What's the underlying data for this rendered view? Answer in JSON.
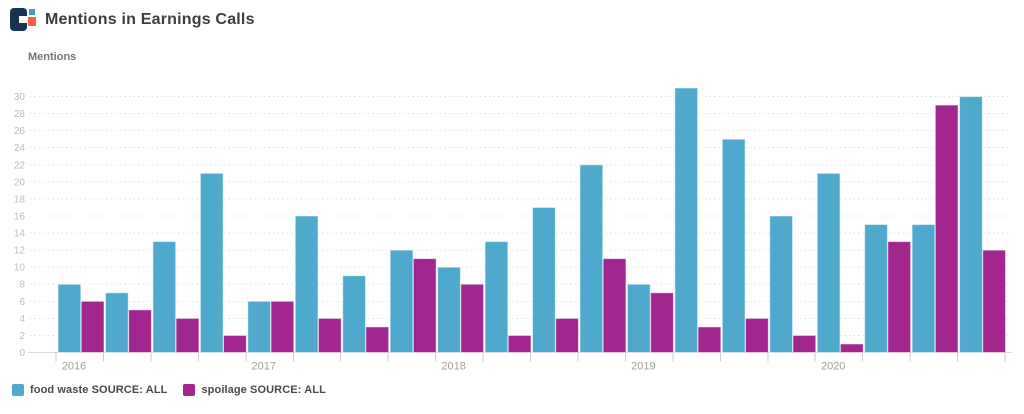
{
  "header": {
    "title": "Mentions in Earnings Calls",
    "logo_name": "cb-insights-logo"
  },
  "colors": {
    "food_waste_blue": "#4FA9CD",
    "spoilage_magenta": "#A1278E",
    "logo_navy": "#17344F",
    "logo_blue": "#3E9BD5",
    "logo_orange": "#F16341",
    "gridline": "#e1e1e1",
    "axis_line": "#d9d9d9",
    "tick_line": "#cccccc"
  },
  "chart_data": {
    "type": "bar",
    "title": "Mentions in Earnings Calls",
    "xlabel": "",
    "ylabel": "Mentions",
    "ylim": [
      0,
      30
    ],
    "ytick_step": 2,
    "grid": "horizontal-dotted",
    "legend_position": "bottom-left",
    "x_year_labels": [
      "2016",
      "2017",
      "2018",
      "2019",
      "2020"
    ],
    "quarters_per_year": 4,
    "categories": [
      "2016 Q1",
      "2016 Q2",
      "2016 Q3",
      "2016 Q4",
      "2017 Q1",
      "2017 Q2",
      "2017 Q3",
      "2017 Q4",
      "2018 Q1",
      "2018 Q2",
      "2018 Q3",
      "2018 Q4",
      "2019 Q1",
      "2019 Q2",
      "2019 Q3",
      "2019 Q4",
      "2020 Q1",
      "2020 Q2",
      "2020 Q3",
      "2020 Q4"
    ],
    "series": [
      {
        "name": "food waste SOURCE: ALL",
        "key": "food-waste",
        "color": "#4FA9CD",
        "values": [
          8,
          7,
          13,
          21,
          6,
          16,
          9,
          12,
          10,
          13,
          17,
          22,
          8,
          31,
          25,
          16,
          21,
          15,
          15,
          30
        ]
      },
      {
        "name": "spoilage SOURCE: ALL",
        "key": "spoilage",
        "color": "#A1278E",
        "values": [
          6,
          5,
          4,
          2,
          6,
          4,
          3,
          11,
          8,
          2,
          4,
          11,
          7,
          3,
          4,
          2,
          1,
          13,
          29,
          12
        ]
      }
    ]
  }
}
